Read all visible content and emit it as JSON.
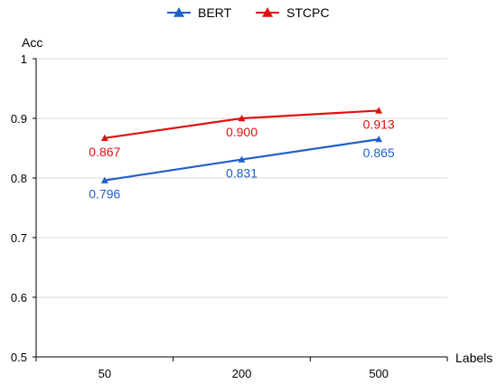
{
  "chart_data": {
    "type": "line",
    "categories": [
      "50",
      "200",
      "500"
    ],
    "ylim": [
      0.5,
      1
    ],
    "yticks": [
      "0.5",
      "0.6",
      "0.7",
      "0.8",
      "0.9",
      "1"
    ],
    "ylabel": "Acc",
    "xlabel": "Labels",
    "grid": true,
    "legend": "top-center",
    "series": [
      {
        "name": "BERT",
        "color": "#1f5fc9",
        "values": [
          0.796,
          0.831,
          0.865
        ],
        "labels": [
          "0.796",
          "0.831",
          "0.865"
        ],
        "label_position": "below"
      },
      {
        "name": "STCPC",
        "color": "#e01010",
        "values": [
          0.867,
          0.9,
          0.913
        ],
        "labels": [
          "0.867",
          "0.900",
          "0.913"
        ],
        "label_position": "below"
      }
    ]
  }
}
